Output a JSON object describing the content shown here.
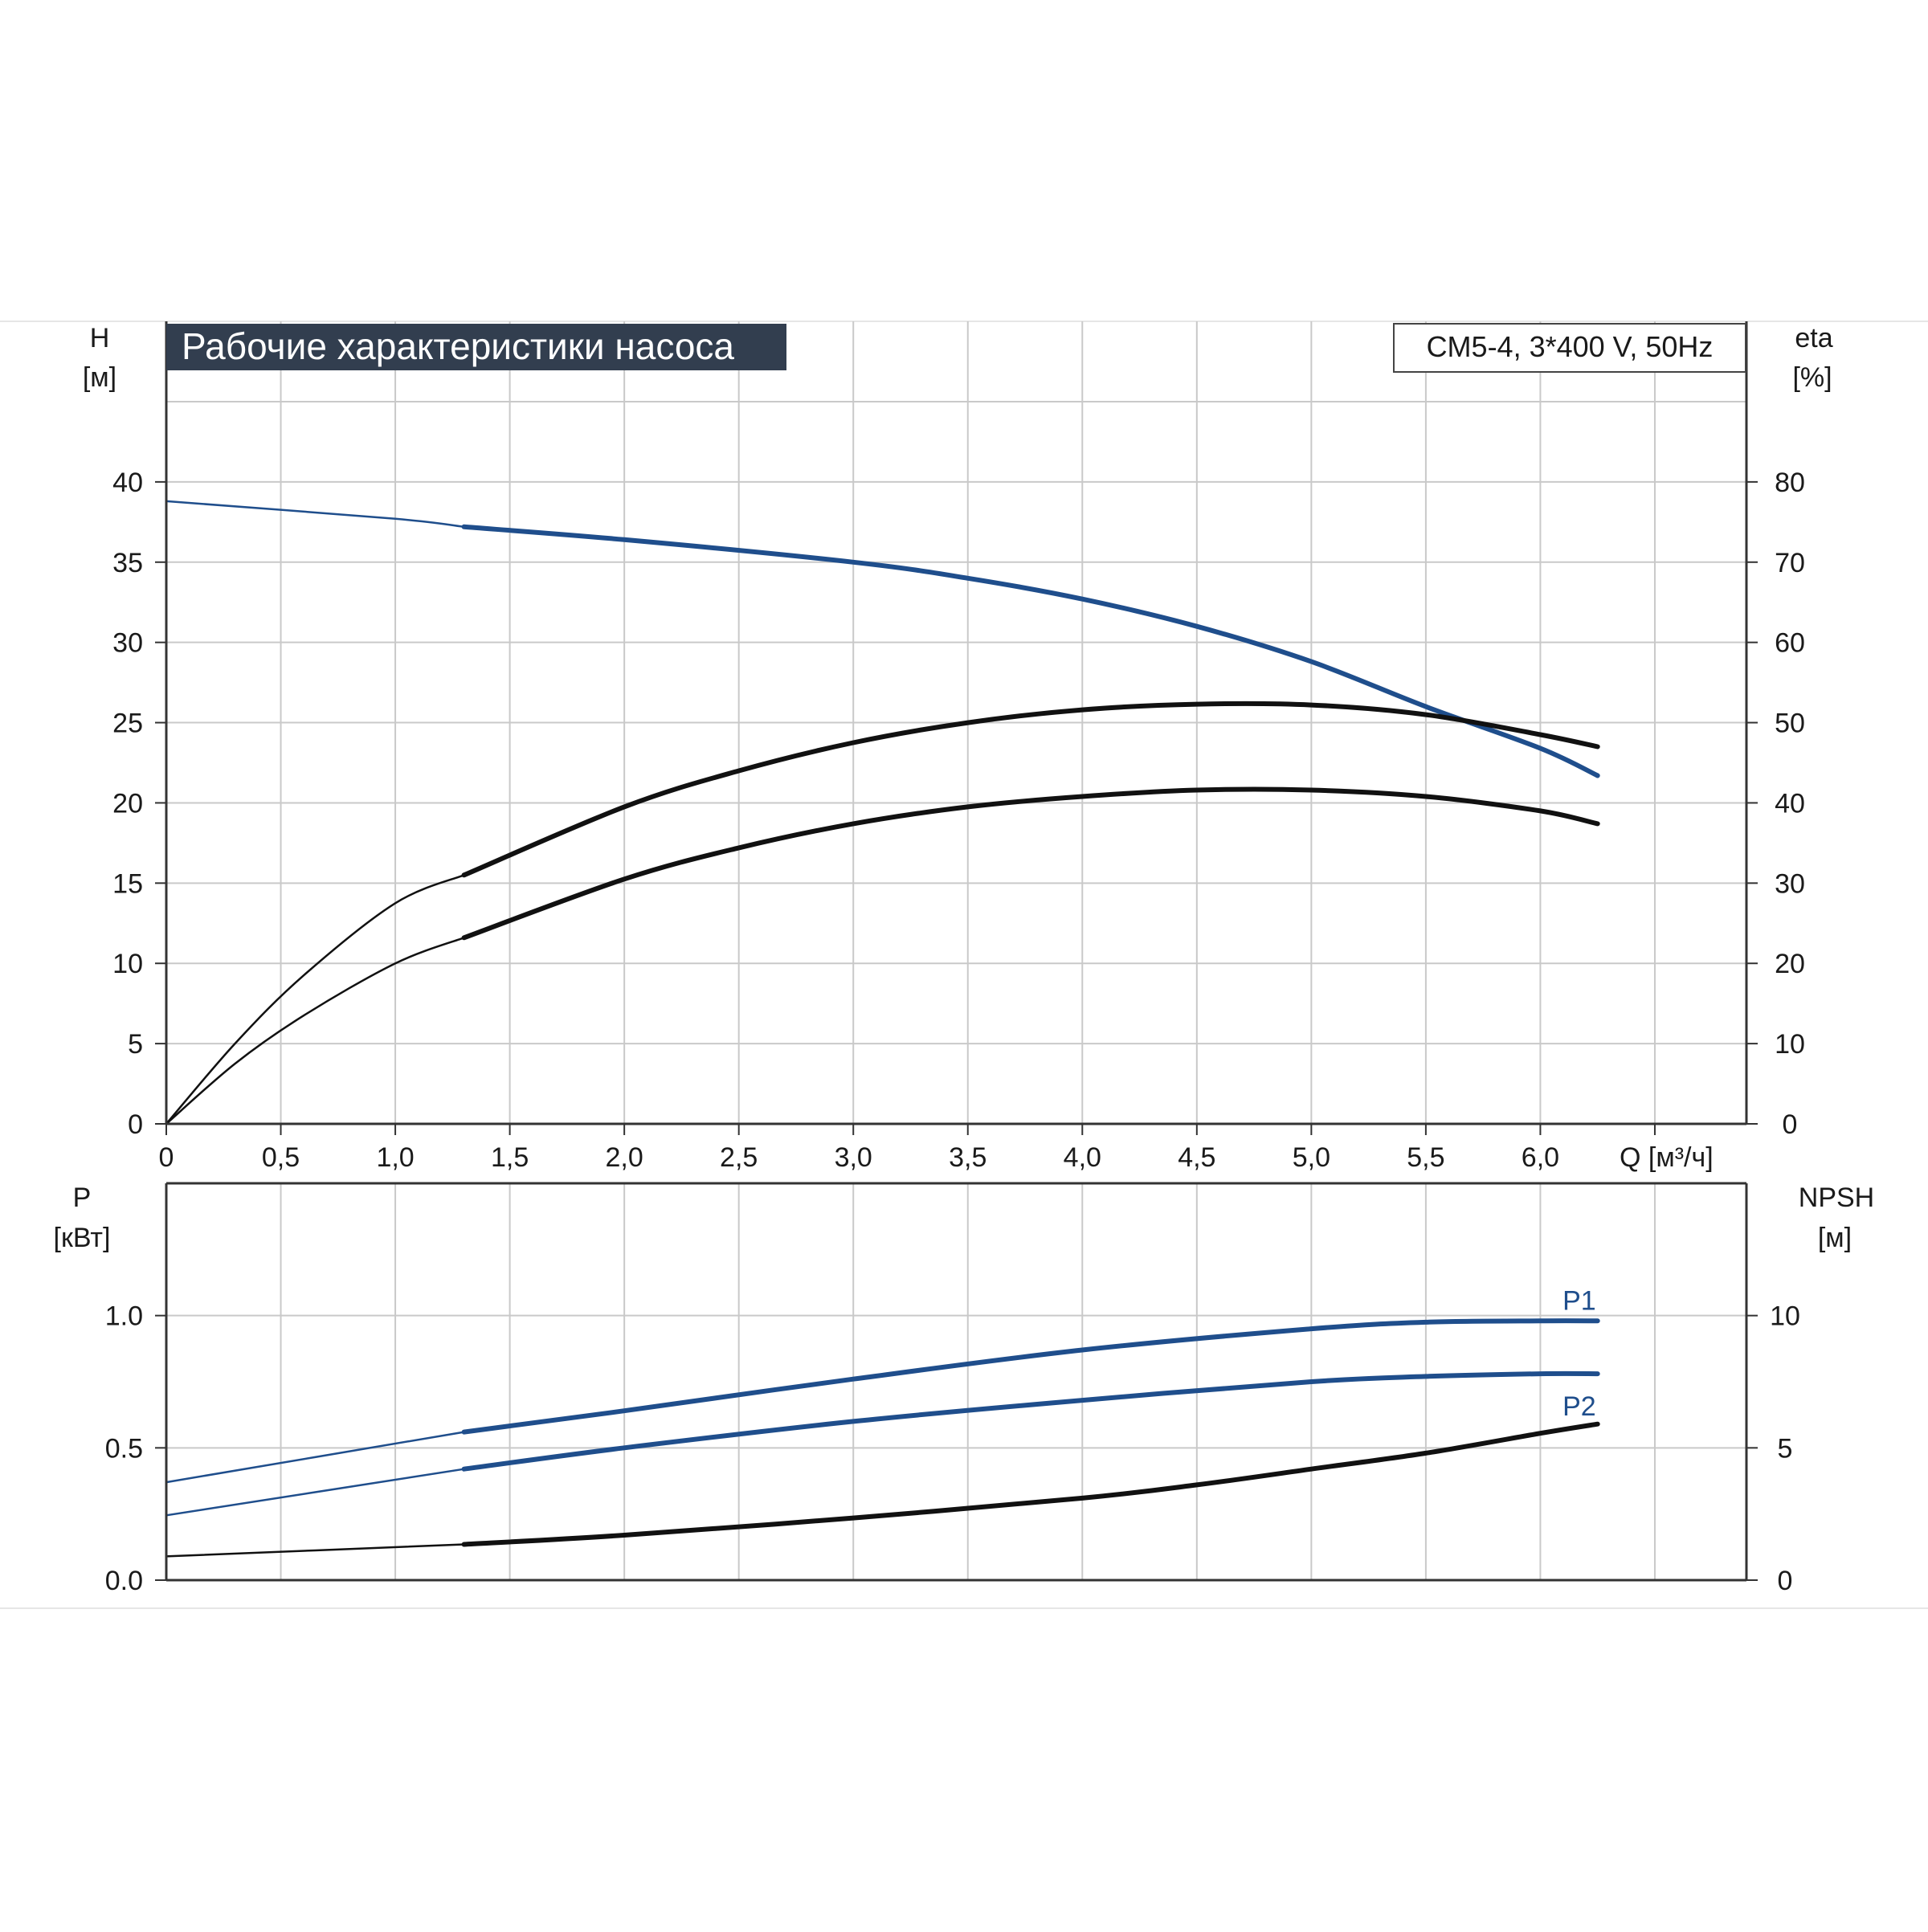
{
  "title": "Рабочие характеристики насоса",
  "model": "CM5-4, 3*400 V, 50Hz",
  "colors": {
    "blue": "#1f4e8c",
    "black": "#111111",
    "grid": "#c9c9c9",
    "title_bg": "#323e4f"
  },
  "x_axis": {
    "label": "Q [м³/ч]",
    "ticks": [
      "0",
      "0,5",
      "1,0",
      "1,5",
      "2,0",
      "2,5",
      "3,0",
      "3,5",
      "4,0",
      "4,5",
      "5,0",
      "5,5",
      "6,0"
    ],
    "range": [
      0,
      6.9
    ]
  },
  "top_panel": {
    "left_axis": {
      "name": "H",
      "unit": "[м]",
      "ticks": [
        "0",
        "5",
        "10",
        "15",
        "20",
        "25",
        "30",
        "35",
        "40"
      ],
      "range": [
        0,
        45
      ]
    },
    "right_axis": {
      "name": "eta",
      "unit": "[%]",
      "ticks": [
        "0",
        "10",
        "20",
        "30",
        "40",
        "50",
        "60",
        "70",
        "80"
      ],
      "range": [
        0,
        90
      ]
    }
  },
  "bottom_panel": {
    "left_axis": {
      "name": "P",
      "unit": "[кВт]",
      "ticks": [
        "0.0",
        "0.5",
        "1.0"
      ],
      "range": [
        0,
        1.5
      ]
    },
    "right_axis": {
      "name": "NPSH",
      "unit": "[м]",
      "ticks": [
        "0",
        "5",
        "10"
      ],
      "range": [
        0,
        15
      ]
    }
  },
  "chart_data": {
    "type": "line",
    "x_unit": "m3/h",
    "operating_range": [
      1.3,
      6.25
    ],
    "series": [
      {
        "name": "",
        "panel": "top",
        "axis": "H",
        "color": "blue",
        "x": [
          0,
          1.0,
          1.3,
          2.0,
          3.0,
          3.5,
          4.0,
          4.5,
          5.0,
          5.5,
          6.0,
          6.25
        ],
        "y": [
          38.8,
          37.7,
          37.2,
          36.4,
          35.0,
          34.0,
          32.7,
          31.0,
          28.8,
          26.0,
          23.4,
          21.7
        ]
      },
      {
        "name": "",
        "panel": "top",
        "axis": "eta",
        "color": "black",
        "x": [
          0,
          0.3,
          0.6,
          1.0,
          1.3,
          2.0,
          2.5,
          3.0,
          3.5,
          4.0,
          4.5,
          5.0,
          5.5,
          6.0,
          6.25
        ],
        "y": [
          0,
          10,
          18.5,
          27.5,
          31,
          39.5,
          44,
          47.5,
          50,
          51.6,
          52.3,
          52.2,
          51,
          48.5,
          47
        ]
      },
      {
        "name": "",
        "panel": "top",
        "axis": "eta",
        "color": "black",
        "x": [
          0,
          0.3,
          0.6,
          1.0,
          1.3,
          2.0,
          2.5,
          3.0,
          3.5,
          4.0,
          4.5,
          5.0,
          5.5,
          6.0,
          6.25
        ],
        "y": [
          0,
          7.5,
          13.5,
          20,
          23.2,
          30.5,
          34.4,
          37.4,
          39.5,
          40.8,
          41.6,
          41.6,
          40.8,
          39,
          37.4
        ]
      },
      {
        "name": "P1",
        "panel": "bottom",
        "axis": "P",
        "color": "blue",
        "x": [
          0,
          1.3,
          2.0,
          3.0,
          4.0,
          5.0,
          5.5,
          6.0,
          6.25
        ],
        "y": [
          0.37,
          0.56,
          0.64,
          0.76,
          0.87,
          0.95,
          0.975,
          0.98,
          0.98
        ]
      },
      {
        "name": "P2",
        "panel": "bottom",
        "axis": "P",
        "color": "blue",
        "x": [
          0,
          1.3,
          2.0,
          3.0,
          4.0,
          5.0,
          5.5,
          6.0,
          6.25
        ],
        "y": [
          0.245,
          0.42,
          0.5,
          0.6,
          0.68,
          0.75,
          0.77,
          0.78,
          0.78
        ]
      },
      {
        "name": "",
        "panel": "bottom",
        "axis": "NPSH",
        "color": "black",
        "x": [
          0,
          1.3,
          2.0,
          3.0,
          4.0,
          4.5,
          5.0,
          5.5,
          6.0,
          6.25
        ],
        "y": [
          0.9,
          1.35,
          1.7,
          2.35,
          3.1,
          3.6,
          4.2,
          4.8,
          5.55,
          5.9
        ]
      }
    ]
  }
}
